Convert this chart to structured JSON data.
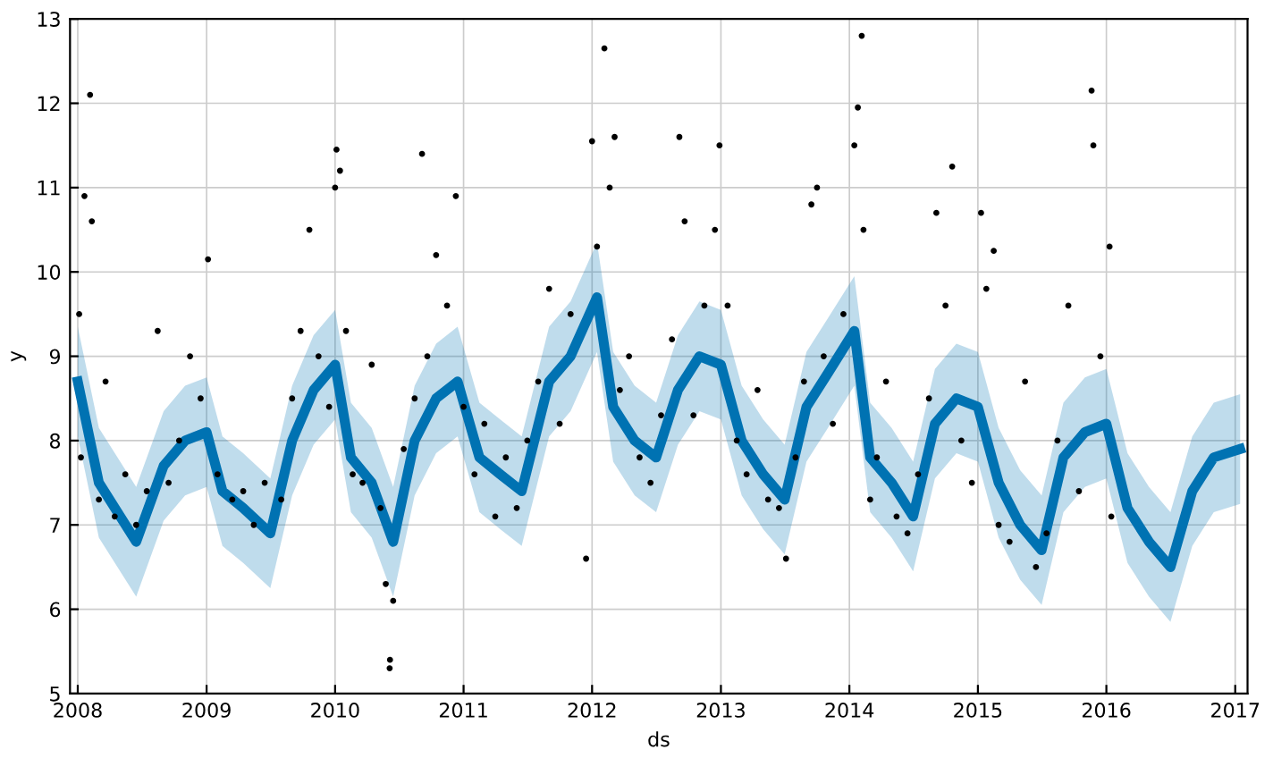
{
  "chart_data": {
    "type": "line",
    "xlabel": "ds",
    "ylabel": "y",
    "xlim": [
      "2007-12-10",
      "2017-02-05"
    ],
    "ylim": [
      5,
      13
    ],
    "xticks": [
      {
        "value": "2008",
        "label": "2008"
      },
      {
        "value": "2009",
        "label": "2009"
      },
      {
        "value": "2010",
        "label": "2010"
      },
      {
        "value": "2011",
        "label": "2011"
      },
      {
        "value": "2012",
        "label": "2012"
      },
      {
        "value": "2013",
        "label": "2013"
      },
      {
        "value": "2014",
        "label": "2014"
      },
      {
        "value": "2015",
        "label": "2015"
      },
      {
        "value": "2016",
        "label": "2016"
      },
      {
        "value": "2017",
        "label": "2017"
      }
    ],
    "yticks": [
      5,
      6,
      7,
      8,
      9,
      10,
      11,
      12,
      13
    ],
    "grid": true,
    "series": [
      {
        "color": "#0072b2",
        "x": [
          "2008-01-01",
          "2008-03-01",
          "2008-06-15",
          "2008-09-01",
          "2008-11-01",
          "2009-01-01",
          "2009-02-15",
          "2009-04-15",
          "2009-07-01",
          "2009-09-01",
          "2009-11-01",
          "2010-01-01",
          "2010-02-15",
          "2010-04-15",
          "2010-06-15",
          "2010-08-15",
          "2010-10-15",
          "2010-12-15",
          "2011-02-15",
          "2011-04-15",
          "2011-06-15",
          "2011-09-01",
          "2011-11-01",
          "2012-01-15",
          "2012-03-01",
          "2012-05-01",
          "2012-07-01",
          "2012-09-01",
          "2012-11-01",
          "2013-01-01",
          "2013-03-01",
          "2013-05-01",
          "2013-07-01",
          "2013-09-01",
          "2013-11-01",
          "2014-01-15",
          "2014-03-01",
          "2014-05-01",
          "2014-07-01",
          "2014-09-01",
          "2014-11-01",
          "2015-01-01",
          "2015-03-01",
          "2015-05-01",
          "2015-07-01",
          "2015-09-01",
          "2015-11-01",
          "2016-01-01",
          "2016-03-01",
          "2016-05-01",
          "2016-07-01",
          "2016-09-01",
          "2016-11-01",
          "2017-01-15"
        ],
        "values": [
          8.7,
          7.5,
          6.8,
          7.7,
          8.0,
          8.1,
          7.4,
          7.2,
          6.9,
          8.0,
          8.6,
          8.9,
          7.8,
          7.5,
          6.8,
          8.0,
          8.5,
          8.7,
          7.8,
          7.6,
          7.4,
          8.7,
          9.0,
          9.7,
          8.4,
          8.0,
          7.8,
          8.6,
          9.0,
          8.9,
          8.0,
          7.6,
          7.3,
          8.4,
          8.8,
          9.3,
          7.8,
          7.5,
          7.1,
          8.2,
          8.5,
          8.4,
          7.5,
          7.0,
          6.7,
          7.8,
          8.1,
          8.2,
          7.2,
          6.8,
          6.5,
          7.4,
          7.8,
          7.9
        ],
        "lower": [
          8.05,
          6.85,
          6.15,
          7.05,
          7.35,
          7.45,
          6.75,
          6.55,
          6.25,
          7.35,
          7.95,
          8.25,
          7.15,
          6.85,
          6.15,
          7.35,
          7.85,
          8.05,
          7.15,
          6.95,
          6.75,
          8.05,
          8.35,
          9.05,
          7.75,
          7.35,
          7.15,
          7.95,
          8.35,
          8.25,
          7.35,
          6.95,
          6.65,
          7.75,
          8.15,
          8.65,
          7.15,
          6.85,
          6.45,
          7.55,
          7.85,
          7.75,
          6.85,
          6.35,
          6.05,
          7.15,
          7.45,
          7.55,
          6.55,
          6.15,
          5.85,
          6.75,
          7.15,
          7.25
        ],
        "upper": [
          9.35,
          8.15,
          7.45,
          8.35,
          8.65,
          8.75,
          8.05,
          7.85,
          7.55,
          8.65,
          9.25,
          9.55,
          8.45,
          8.15,
          7.45,
          8.65,
          9.15,
          9.35,
          8.45,
          8.25,
          8.05,
          9.35,
          9.65,
          10.35,
          9.05,
          8.65,
          8.45,
          9.25,
          9.65,
          9.55,
          8.65,
          8.25,
          7.95,
          9.05,
          9.45,
          9.95,
          8.45,
          8.15,
          7.75,
          8.85,
          9.15,
          9.05,
          8.15,
          7.65,
          7.35,
          8.45,
          8.75,
          8.85,
          7.85,
          7.45,
          7.15,
          8.05,
          8.45,
          8.55
        ]
      },
      {
        "type": "scatter",
        "color": "#000000",
        "x": [
          "2008-01-05",
          "2008-01-20",
          "2008-02-05",
          "2008-02-10",
          "2008-01-10",
          "2008-03-01",
          "2008-03-20",
          "2008-04-15",
          "2008-05-15",
          "2008-06-15",
          "2008-07-15",
          "2008-08-15",
          "2008-09-15",
          "2008-10-15",
          "2008-11-15",
          "2008-12-15",
          "2009-01-05",
          "2009-02-01",
          "2009-03-15",
          "2009-04-15",
          "2009-05-15",
          "2009-06-15",
          "2009-08-01",
          "2009-09-01",
          "2009-09-25",
          "2009-10-20",
          "2009-11-15",
          "2009-12-15",
          "2010-01-01",
          "2010-01-05",
          "2010-01-15",
          "2010-02-01",
          "2010-02-20",
          "2010-03-20",
          "2010-04-15",
          "2010-05-10",
          "2010-05-25",
          "2010-06-05",
          "2010-06-06",
          "2010-06-15",
          "2010-07-15",
          "2010-08-15",
          "2010-09-05",
          "2010-09-20",
          "2010-10-15",
          "2010-11-15",
          "2010-12-10",
          "2011-01-01",
          "2011-02-01",
          "2011-03-01",
          "2011-04-01",
          "2011-05-01",
          "2011-06-01",
          "2011-07-01",
          "2011-08-01",
          "2011-09-01",
          "2011-10-01",
          "2011-11-01",
          "2011-12-15",
          "2012-01-01",
          "2012-01-15",
          "2012-02-05",
          "2012-02-20",
          "2012-03-05",
          "2012-03-20",
          "2012-04-15",
          "2012-05-15",
          "2012-06-15",
          "2012-07-15",
          "2012-08-15",
          "2012-09-05",
          "2012-09-20",
          "2012-10-15",
          "2012-11-15",
          "2012-12-15",
          "2012-12-28",
          "2013-01-20",
          "2013-02-15",
          "2013-03-15",
          "2013-04-15",
          "2013-05-15",
          "2013-06-15",
          "2013-07-05",
          "2013-08-01",
          "2013-08-25",
          "2013-09-15",
          "2013-10-01",
          "2013-10-20",
          "2013-11-15",
          "2013-12-15",
          "2014-01-15",
          "2014-01-25",
          "2014-02-05",
          "2014-02-10",
          "2014-03-01",
          "2014-03-20",
          "2014-04-15",
          "2014-05-15",
          "2014-06-15",
          "2014-07-15",
          "2014-08-15",
          "2014-09-05",
          "2014-10-01",
          "2014-10-20",
          "2014-11-15",
          "2014-12-15",
          "2015-01-10",
          "2015-01-25",
          "2015-02-15",
          "2015-03-01",
          "2015-04-01",
          "2015-05-15",
          "2015-06-15",
          "2015-07-15",
          "2015-08-15",
          "2015-09-15",
          "2015-10-15",
          "2015-11-20",
          "2015-11-25",
          "2015-12-15",
          "2016-01-10",
          "2016-01-15"
        ],
        "values": [
          9.5,
          10.9,
          12.1,
          10.6,
          7.8,
          7.3,
          8.7,
          7.1,
          7.6,
          7.0,
          7.4,
          9.3,
          7.5,
          8.0,
          9.0,
          8.5,
          10.15,
          7.6,
          7.3,
          7.4,
          7.0,
          7.5,
          7.3,
          8.5,
          9.3,
          10.5,
          9.0,
          8.4,
          11.0,
          11.45,
          11.2,
          9.3,
          7.6,
          7.5,
          8.9,
          7.2,
          6.3,
          5.3,
          5.4,
          6.1,
          7.9,
          8.5,
          11.4,
          9.0,
          10.2,
          9.6,
          10.9,
          8.4,
          7.6,
          8.2,
          7.1,
          7.8,
          7.2,
          8.0,
          8.7,
          9.8,
          8.2,
          9.5,
          6.6,
          11.55,
          10.3,
          12.65,
          11.0,
          11.6,
          8.6,
          9.0,
          7.8,
          7.5,
          8.3,
          9.2,
          11.6,
          10.6,
          8.3,
          9.6,
          10.5,
          11.5,
          9.6,
          8.0,
          7.6,
          8.6,
          7.3,
          7.2,
          6.6,
          7.8,
          8.7,
          10.8,
          11.0,
          9.0,
          8.2,
          9.5,
          11.5,
          11.95,
          12.8,
          10.5,
          7.3,
          7.8,
          8.7,
          7.1,
          6.9,
          7.6,
          8.5,
          10.7,
          9.6,
          11.25,
          8.0,
          7.5,
          10.7,
          9.8,
          10.25,
          7.0,
          6.8,
          8.7,
          6.5,
          6.9,
          8.0,
          9.6,
          7.4,
          12.15,
          11.5,
          9.0,
          10.3,
          7.1
        ]
      }
    ]
  }
}
